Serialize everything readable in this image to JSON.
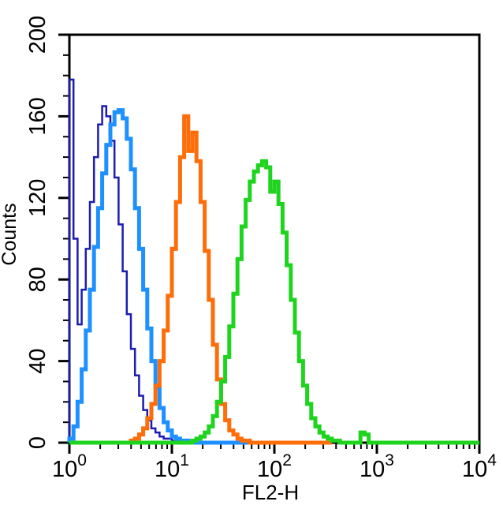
{
  "chart_data": {
    "type": "line",
    "subtype": "flow-cytometry-histogram-overlay",
    "title": "",
    "xlabel": "FL2-H",
    "ylabel": "Counts",
    "x_scale": "log10",
    "x_decade_exponents": [
      0,
      1,
      2,
      3,
      4
    ],
    "x_tick_base": "10",
    "x_minor_ticks_per_decade": [
      2,
      3,
      4,
      5,
      6,
      7,
      8,
      9
    ],
    "ylim": [
      0,
      200
    ],
    "y_major_ticks": [
      "0",
      "40",
      "80",
      "120",
      "160",
      "200"
    ],
    "y_major_step": 40,
    "y_minor_step": 10,
    "grid": false,
    "legend": "none",
    "frame": true,
    "axis_color": "#000000",
    "background_color": "#ffffff",
    "bin_log_width": 0.04,
    "series": [
      {
        "name": "dark-blue-histogram",
        "color": "#1C1CB0",
        "stroke_width": 2.5,
        "bin_log_start": 0.0,
        "peak_x_approx": 2.2,
        "peak_counts_approx": 165,
        "edge_spike_counts": 178,
        "baseline_end_log": 1.12,
        "counts": [
          178,
          100,
          58,
          75,
          95,
          118,
          140,
          156,
          165,
          160,
          148,
          130,
          107,
          84,
          63,
          46,
          33,
          23,
          16,
          11,
          7,
          5,
          3,
          2,
          2,
          1,
          1,
          0
        ]
      },
      {
        "name": "light-blue-histogram",
        "color": "#1E90FF",
        "stroke_width": 5,
        "bin_log_start": 0.0,
        "peak_x_approx": 3.3,
        "peak_counts_approx": 163,
        "baseline_end_log": 1.76,
        "counts": [
          2,
          8,
          20,
          36,
          55,
          75,
          96,
          115,
          132,
          146,
          156,
          162,
          163,
          159,
          149,
          134,
          115,
          95,
          75,
          56,
          40,
          27,
          17,
          10,
          6,
          3,
          2,
          1,
          1,
          0
        ]
      },
      {
        "name": "orange-histogram",
        "color": "#FD6E0A",
        "stroke_width": 5,
        "bin_log_start": 0.0,
        "peak_x_approx": 14,
        "peak_counts_approx": 160,
        "baseline_end_log": 2.56,
        "counts": [
          0,
          0,
          0,
          0,
          0,
          0,
          0,
          0,
          0,
          0,
          0,
          0,
          0,
          0,
          0,
          1,
          2,
          4,
          7,
          12,
          19,
          28,
          40,
          55,
          72,
          95,
          118,
          140,
          160,
          143,
          152,
          138,
          118,
          94,
          70,
          48,
          31,
          19,
          11,
          6,
          4,
          2,
          1,
          1,
          0
        ]
      },
      {
        "name": "green-histogram",
        "color": "#1FD41F",
        "stroke_width": 5,
        "bin_log_start": 0.0,
        "peak_x_approx": 90,
        "peak_counts_approx": 138,
        "baseline_end_log": 4.0,
        "counts": [
          0,
          0,
          0,
          0,
          0,
          0,
          0,
          0,
          0,
          0,
          0,
          0,
          0,
          0,
          0,
          0,
          0,
          0,
          0,
          0,
          0,
          0,
          0,
          0,
          0,
          0,
          0,
          0,
          0,
          0,
          1,
          2,
          3,
          5,
          8,
          13,
          20,
          30,
          42,
          57,
          73,
          90,
          106,
          119,
          128,
          133,
          136,
          138,
          135,
          123,
          128,
          117,
          103,
          87,
          70,
          54,
          40,
          28,
          19,
          12,
          8,
          5,
          3,
          2,
          1,
          1,
          0,
          0,
          0,
          0,
          0,
          5,
          4,
          0
        ]
      }
    ]
  }
}
